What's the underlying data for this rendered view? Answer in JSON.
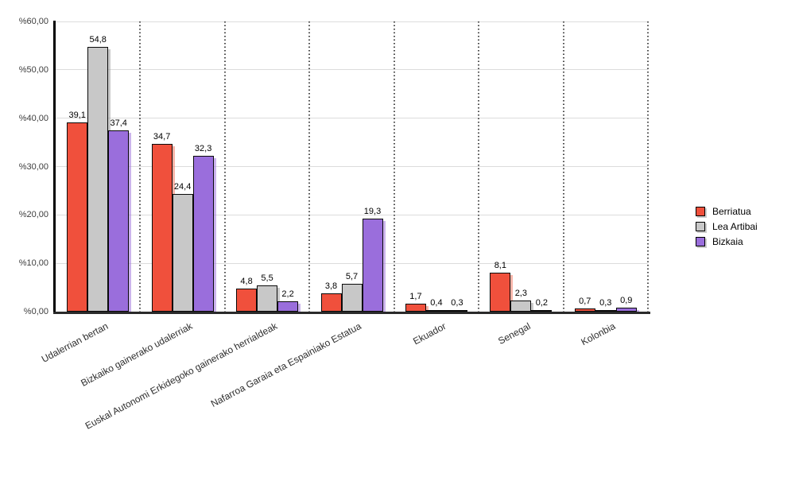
{
  "chart_data": {
    "type": "bar",
    "title": "",
    "xlabel": "",
    "ylabel": "",
    "ylim": [
      0,
      60
    ],
    "grid": "horizontal solid gridlines every 10%, dotted vertical category separators",
    "legend_position": "right",
    "categories": [
      "Udalerrian bertan",
      "Bizkaiko gainerako udalerriak",
      "Euskal Autonomi Erkidegoko gainerako herrialdeak",
      "Nafarroa Garaia eta Espainiako Estatua",
      "Ekuador",
      "Senegal",
      "Kolonbia"
    ],
    "series": [
      {
        "name": "Berriatua",
        "color": "#F0503C",
        "shadow_color": "rgba(243,120,98,0.55)",
        "values": [
          39.1,
          34.7,
          4.8,
          3.8,
          1.7,
          8.1,
          0.7
        ],
        "labels": [
          "39,1",
          "34,7",
          "4,8",
          "3,8",
          "1,7",
          "8,1",
          "0,7"
        ]
      },
      {
        "name": "Lea Artibai",
        "color": "#C8C8C8",
        "shadow_color": "rgba(150,150,150,0.5)",
        "values": [
          54.8,
          24.4,
          5.5,
          5.7,
          0.4,
          2.3,
          0.3
        ],
        "labels": [
          "54,8",
          "24,4",
          "5,5",
          "5,7",
          "0,4",
          "2,3",
          "0,3"
        ]
      },
      {
        "name": "Bizkaia",
        "color": "#9A6EDC",
        "shadow_color": "rgba(170,130,225,0.6)",
        "values": [
          37.4,
          32.3,
          2.2,
          19.3,
          0.3,
          0.2,
          0.9
        ],
        "labels": [
          "37,4",
          "32,3",
          "2,2",
          "19,3",
          "0,3",
          "0,2",
          "0,9"
        ]
      }
    ],
    "y_axis": {
      "min": 0,
      "max": 60,
      "ticks": [
        {
          "v": 60,
          "label": "%60,00"
        },
        {
          "v": 50,
          "label": "%50,00"
        },
        {
          "v": 40,
          "label": "%40,00"
        },
        {
          "v": 30,
          "label": "%30,00"
        },
        {
          "v": 20,
          "label": "%20,00"
        },
        {
          "v": 10,
          "label": "%10,00"
        },
        {
          "v": 0,
          "label": "%0,00"
        }
      ]
    }
  }
}
